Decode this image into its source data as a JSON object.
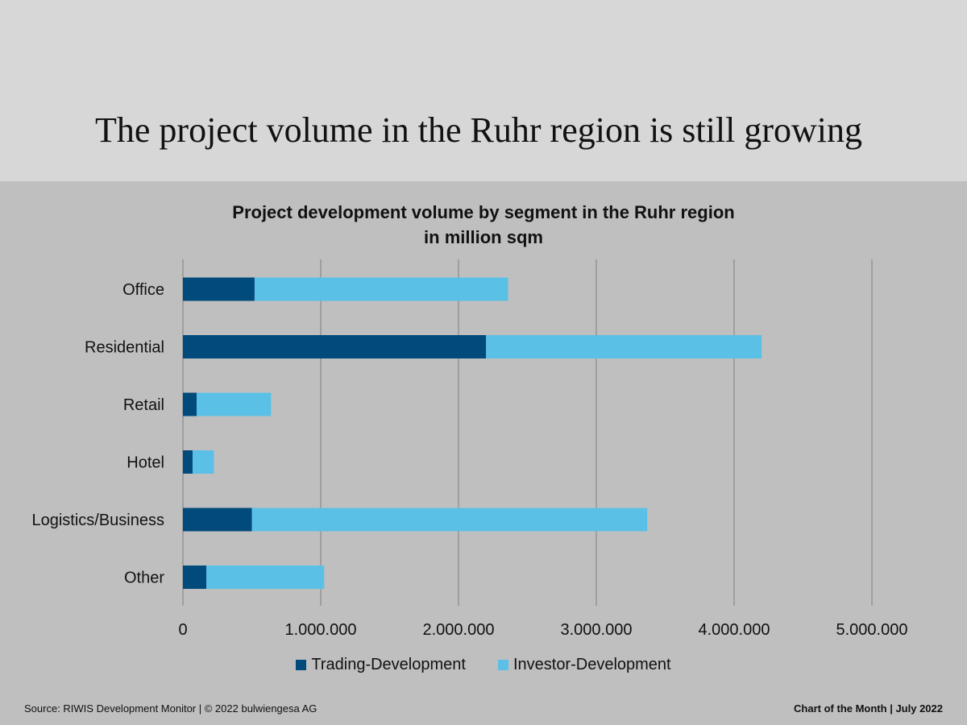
{
  "slide": {
    "title": "The project volume in the Ruhr region is still growing",
    "source": "Source: RIWIS Development Monitor | © 2022 bulwiengesa AG",
    "footer_right": "Chart of the Month | July 2022"
  },
  "chart_data": {
    "type": "bar",
    "orientation": "horizontal",
    "stacked": true,
    "title": "Project development volume by segment in the Ruhr region",
    "subtitle": "in million sqm",
    "categories": [
      "Office",
      "Residential",
      "Retail",
      "Hotel",
      "Logistics/Business",
      "Other"
    ],
    "series": [
      {
        "name": "Trading-Development",
        "color": "#004a7c",
        "values": [
          520000,
          2200000,
          100000,
          70000,
          500000,
          170000
        ]
      },
      {
        "name": "Investor-Development",
        "color": "#5bc0e6",
        "values": [
          1840000,
          2000000,
          540000,
          155000,
          2870000,
          855000
        ]
      }
    ],
    "xlim": [
      0,
      5000000
    ],
    "xticks": [
      0,
      1000000,
      2000000,
      3000000,
      4000000,
      5000000
    ],
    "xtick_labels": [
      "0",
      "1.000.000",
      "2.000.000",
      "3.000.000",
      "4.000.000",
      "5.000.000"
    ],
    "grid": true,
    "legend_position": "bottom"
  }
}
